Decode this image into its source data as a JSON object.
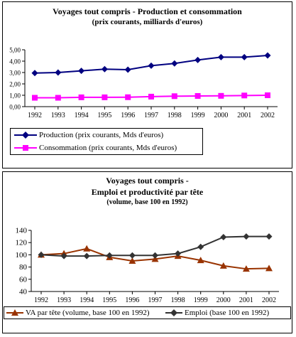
{
  "chart_data": [
    {
      "type": "line",
      "title": "Voyages tout compris -  Production et consommation",
      "subtitle": "(prix courants, milliards d'euros)",
      "categories": [
        "1992",
        "1993",
        "1994",
        "1995",
        "1996",
        "1997",
        "1998",
        "1999",
        "2000",
        "2001",
        "2002"
      ],
      "ylim": [
        0,
        5
      ],
      "yticks": [
        "0,00",
        "1,00",
        "2,00",
        "3,00",
        "4,00",
        "5,00"
      ],
      "grid": false,
      "legend_placement": "bottom",
      "series": [
        {
          "name": "Production  (prix courants, Mds d'euros)",
          "color": "#000080",
          "marker": "diamond",
          "values": [
            2.95,
            3.0,
            3.15,
            3.3,
            3.25,
            3.6,
            3.8,
            4.1,
            4.35,
            4.35,
            4.5
          ]
        },
        {
          "name": "Consommation (prix courants, Mds d'euros)",
          "color": "#ff00ff",
          "marker": "square",
          "values": [
            0.78,
            0.78,
            0.82,
            0.82,
            0.83,
            0.88,
            0.92,
            0.94,
            0.95,
            0.98,
            1.0
          ]
        }
      ]
    },
    {
      "type": "line",
      "title": "Voyages tout compris -",
      "subtitle": "Emploi et productivité par tête",
      "subtitle2": "(volume, base 100 en 1992)",
      "categories": [
        "1992",
        "1993",
        "1994",
        "1995",
        "1996",
        "1997",
        "1998",
        "1999",
        "2000",
        "2001",
        "2002"
      ],
      "ylim": [
        40,
        140
      ],
      "yticks": [
        "40",
        "60",
        "80",
        "100",
        "120",
        "140"
      ],
      "grid": false,
      "legend_placement": "bottom",
      "series": [
        {
          "name": "VA par tête (volume, base 100 en 1992)",
          "color": "#993300",
          "marker": "triangle",
          "values": [
            100,
            102,
            110,
            96,
            90,
            93,
            98,
            91,
            82,
            77,
            78
          ]
        },
        {
          "name": "Emploi (base 100 en 1992)",
          "color": "#333333",
          "marker": "diamond",
          "values": [
            100,
            98,
            98,
            99,
            99,
            99,
            102,
            113,
            129,
            130,
            130
          ]
        }
      ]
    }
  ]
}
